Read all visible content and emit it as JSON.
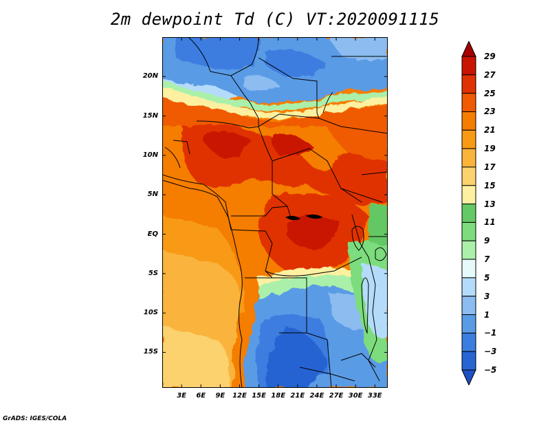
{
  "title": "2m dewpoint Td (C) VT:2020091115",
  "credit": "GrADS: IGES/COLA",
  "axes": {
    "lat_labels": [
      "20N",
      "15N",
      "10N",
      "5N",
      "EQ",
      "5S",
      "10S",
      "15S"
    ],
    "lat_values": [
      20,
      15,
      10,
      5,
      0,
      -5,
      -10,
      -15
    ],
    "lon_labels": [
      "3E",
      "6E",
      "9E",
      "12E",
      "15E",
      "18E",
      "21E",
      "24E",
      "27E",
      "30E",
      "33E"
    ],
    "lon_values": [
      3,
      6,
      9,
      12,
      15,
      18,
      21,
      24,
      27,
      30,
      33
    ],
    "lon_range": [
      0,
      35
    ],
    "lat_range": [
      -19.5,
      25
    ]
  },
  "colorbar": {
    "labels": [
      "29",
      "27",
      "25",
      "23",
      "21",
      "19",
      "17",
      "15",
      "13",
      "11",
      "9",
      "7",
      "5",
      "3",
      "1",
      "−1",
      "−3",
      "−5"
    ],
    "values": [
      29,
      27,
      25,
      23,
      21,
      19,
      17,
      15,
      13,
      11,
      9,
      7,
      5,
      3,
      1,
      -1,
      -3,
      -5
    ],
    "colors": [
      "#a50000",
      "#c81400",
      "#e03200",
      "#f05a00",
      "#f57d00",
      "#f89a14",
      "#fab43c",
      "#fcd26e",
      "#fdf0a0",
      "#64c864",
      "#7ddc7d",
      "#aaf0aa",
      "#e6fafa",
      "#b4dcfa",
      "#8cbcf0",
      "#5a9be6",
      "#3c7de0",
      "#2864d2",
      "#1e50c3"
    ]
  }
}
